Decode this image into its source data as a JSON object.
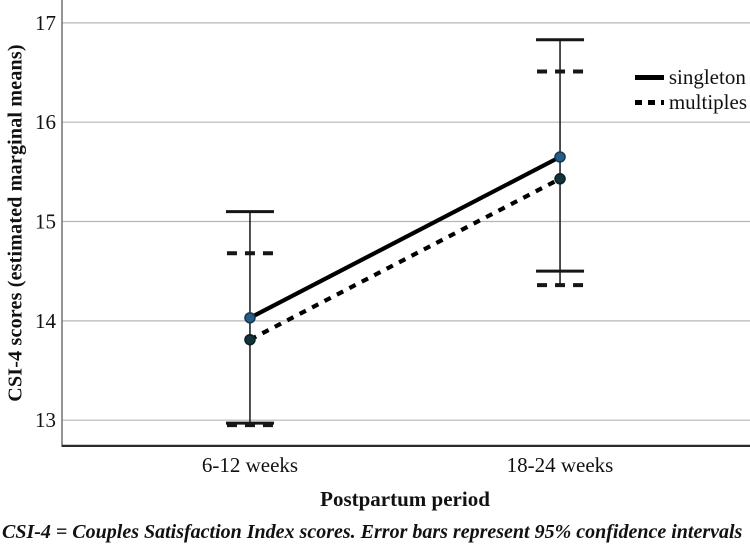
{
  "figure": {
    "caption": "CSI-4 = Couples Satisfaction Index scores. Error bars represent 95% confidence intervals"
  },
  "chart_data": {
    "type": "line",
    "title": "",
    "xlabel": "Postpartum period",
    "ylabel": "CSI-4 scores (estimated marginal means)",
    "categories": [
      "6-12 weeks",
      "18-24 weeks"
    ],
    "y_ticks": [
      13,
      14,
      15,
      16,
      17
    ],
    "ylim": [
      12.73,
      17.23
    ],
    "grid": "horizontal-only",
    "legend_position": "top-right",
    "error_bars": "95% confidence intervals",
    "series": [
      {
        "name": "singleton",
        "line_style": "solid",
        "values": [
          14.03,
          15.65
        ],
        "ci_low": [
          12.97,
          14.5
        ],
        "ci_high": [
          15.1,
          16.83
        ],
        "line_color": "#000000",
        "marker_color": "#275b88",
        "marker_edge": "#16374f"
      },
      {
        "name": "multiples",
        "line_style": "dotted",
        "values": [
          13.81,
          15.43
        ],
        "ci_low": [
          12.95,
          14.36
        ],
        "ci_high": [
          14.68,
          16.51
        ],
        "line_color": "#000000",
        "marker_color": "#12333a",
        "marker_edge": "#0a1f24"
      }
    ],
    "colors": {
      "gridline": "#b5b5b5",
      "left_axis": "#7a7a7a",
      "bottom_axis": "#2a2a2a",
      "error_bar": "#161616",
      "tick_label": "#111111"
    }
  }
}
